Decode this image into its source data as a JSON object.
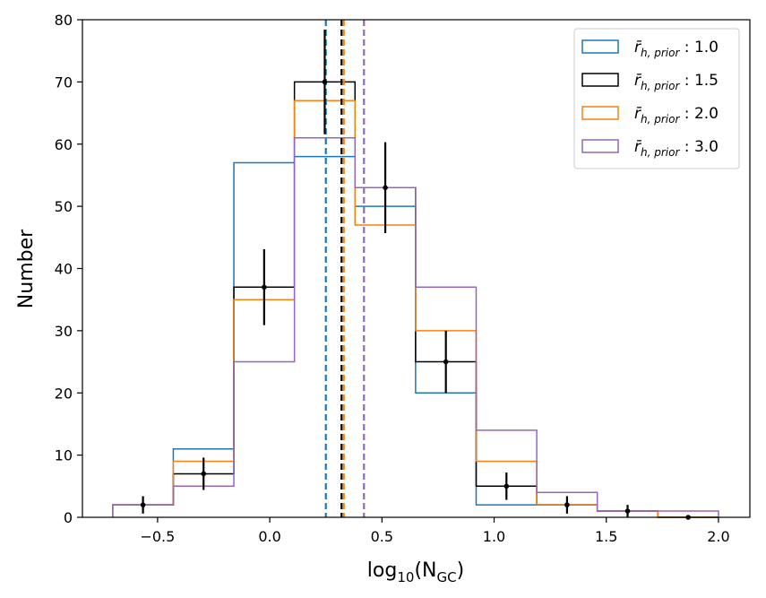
{
  "chart_data": {
    "type": "histogram",
    "title": "",
    "xlabel": "log10(NGC)",
    "xlabel_parts": {
      "base": "log",
      "base_sub": "10",
      "open": "(N",
      "n_sub": "GC",
      "close": ")"
    },
    "ylabel": "Number",
    "xlim": [
      -0.835,
      2.14
    ],
    "ylim": [
      0,
      80
    ],
    "xticks": [
      -0.5,
      0.0,
      0.5,
      1.0,
      1.5,
      2.0
    ],
    "xtick_labels": [
      "−0.5",
      "0.0",
      "0.5",
      "1.0",
      "1.5",
      "2.0"
    ],
    "yticks": [
      0,
      10,
      20,
      30,
      40,
      50,
      60,
      70,
      80
    ],
    "ytick_labels": [
      "0",
      "10",
      "20",
      "30",
      "40",
      "50",
      "60",
      "70",
      "80"
    ],
    "bin_edges": [
      -0.7,
      -0.43,
      -0.16,
      0.11,
      0.38,
      0.65,
      0.92,
      1.19,
      1.46,
      1.73,
      2.0
    ],
    "series": [
      {
        "name": "r̄h,prior : 1.0",
        "value_label": "1.0",
        "color": "#1f77b4",
        "values": [
          2,
          11,
          57,
          58,
          50,
          20,
          2,
          2,
          1,
          0
        ],
        "median_line": 0.25
      },
      {
        "name": "r̄h,prior : 1.5",
        "value_label": "1.5",
        "color": "#000000",
        "values": [
          2,
          7,
          37,
          70,
          53,
          25,
          5,
          2,
          1,
          0
        ],
        "median_line": 0.32
      },
      {
        "name": "r̄h,prior : 2.0",
        "value_label": "2.0",
        "color": "#ff7f0e",
        "values": [
          2,
          9,
          35,
          67,
          47,
          30,
          9,
          2,
          1,
          0
        ],
        "median_line": 0.33
      },
      {
        "name": "r̄h,prior : 3.0",
        "value_label": "3.0",
        "color": "#9467bd",
        "values": [
          2,
          5,
          25,
          61,
          53,
          37,
          14,
          4,
          1,
          1
        ],
        "median_line": 0.42
      }
    ],
    "errorbars": {
      "color": "#000000",
      "x": [
        -0.565,
        -0.295,
        -0.025,
        0.245,
        0.515,
        0.785,
        1.055,
        1.325,
        1.595,
        1.865
      ],
      "y": [
        2,
        7,
        37,
        70,
        53,
        25,
        5,
        2,
        1,
        0
      ],
      "yerr": [
        1.4,
        2.6,
        6.1,
        8.4,
        7.3,
        5.0,
        2.2,
        1.4,
        1.0,
        0
      ],
      "xerr": 0.135
    },
    "legend_position": "top-right",
    "legend_symbol": "r̄",
    "legend_sub": "h, prior"
  }
}
